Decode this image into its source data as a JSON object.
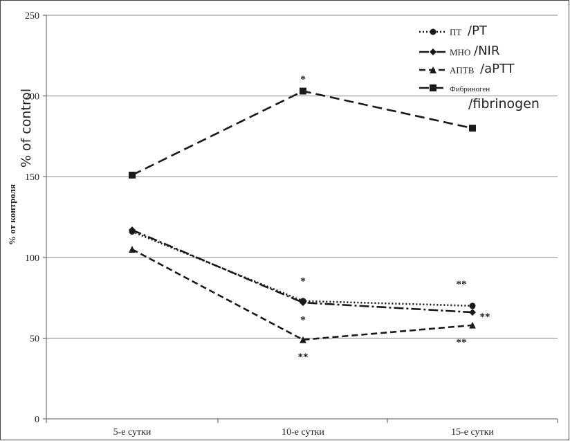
{
  "chart_data": {
    "type": "line",
    "title": "",
    "xlabel": "",
    "ylabel": "% от контроля",
    "ylabel_translation": "% of control",
    "categories": [
      "5-е сутки",
      "10-е сутки",
      "15-е сутки"
    ],
    "y_ticks": [
      "0",
      "50",
      "100",
      "150",
      "200",
      "250"
    ],
    "ylim": [
      0,
      250
    ],
    "grid": "horizontal",
    "legend_position": "top-right",
    "series": [
      {
        "name": "ПТ",
        "translation": "/PT",
        "marker": "circle",
        "dash": "dotted",
        "color": "#1a1a1a",
        "values": [
          116,
          73,
          70
        ]
      },
      {
        "name": "МНО",
        "translation": "/NIR",
        "marker": "diamond",
        "dash": "dash-dot",
        "color": "#1a1a1a",
        "values": [
          117,
          72,
          66
        ]
      },
      {
        "name": "АПТВ",
        "translation": "/aPTT",
        "marker": "triangle",
        "dash": "short-dash",
        "color": "#1a1a1a",
        "values": [
          105,
          49,
          58
        ]
      },
      {
        "name": "Фибриноген",
        "translation": "/fibrinogen",
        "marker": "square",
        "dash": "long-dash",
        "color": "#1a1a1a",
        "values": [
          151,
          203,
          180
        ]
      }
    ],
    "annotations": [
      {
        "text": "*",
        "category": 1,
        "y": 211
      },
      {
        "text": "*",
        "category": 1,
        "y": 86
      },
      {
        "text": "*",
        "category": 1,
        "y": 62
      },
      {
        "text": "**",
        "category": 1,
        "y": 39
      },
      {
        "text": "**",
        "category": 2,
        "y": 84
      },
      {
        "text": "**",
        "category": 2,
        "y": 64
      },
      {
        "text": "**",
        "category": 2,
        "y": 48
      }
    ]
  }
}
